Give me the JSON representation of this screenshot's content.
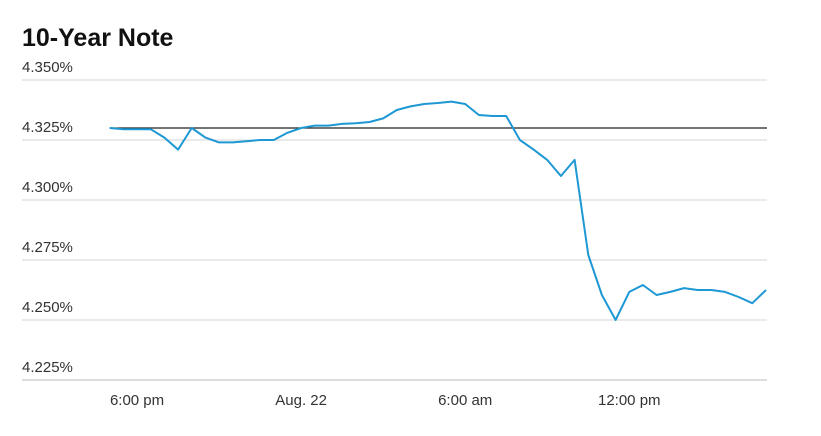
{
  "chart_data": {
    "type": "line",
    "title": "10-Year Note",
    "categories": [
      null,
      null,
      "6:00 pm",
      null,
      null,
      null,
      null,
      null,
      null,
      null,
      null,
      null,
      null,
      null,
      "Aug. 22",
      null,
      null,
      null,
      null,
      null,
      null,
      null,
      null,
      null,
      null,
      null,
      "6:00 am",
      null,
      null,
      null,
      null,
      null,
      null,
      null,
      null,
      null,
      null,
      null,
      "12:00 pm",
      null,
      null,
      null,
      null,
      null,
      null,
      null,
      null,
      null,
      null
    ],
    "values": [
      4.33,
      4.3295,
      4.3295,
      4.3295,
      4.326,
      4.321,
      4.33,
      4.326,
      4.324,
      4.324,
      4.3245,
      4.325,
      4.325,
      4.328,
      4.33,
      4.331,
      4.331,
      4.3317,
      4.332,
      4.3325,
      4.334,
      4.3375,
      4.339,
      4.34,
      4.3404,
      4.341,
      4.34,
      4.3354,
      4.335,
      4.335,
      4.325,
      4.321,
      4.3167,
      4.31,
      4.3167,
      4.2771,
      4.2604,
      4.25,
      4.2617,
      4.2646,
      4.2604,
      4.2617,
      4.2633,
      4.2625,
      4.2625,
      4.2617,
      4.2596,
      4.257,
      4.2625
    ],
    "color": "#1e98d4",
    "reference_line": 4.33,
    "ylim": [
      4.225,
      4.35
    ],
    "yticks": [
      {
        "value": 4.225,
        "label": "4.225%"
      },
      {
        "value": 4.25,
        "label": "4.250%"
      },
      {
        "value": 4.275,
        "label": "4.275%"
      },
      {
        "value": 4.3,
        "label": "4.300%"
      },
      {
        "value": 4.325,
        "label": "4.325%"
      },
      {
        "value": 4.35,
        "label": "4.350%"
      }
    ],
    "grid": true
  }
}
